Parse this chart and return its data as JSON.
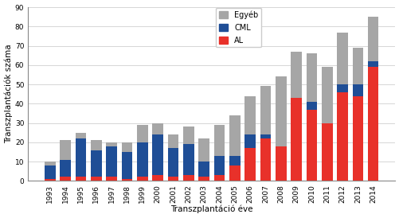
{
  "years": [
    "1993",
    "1994",
    "1995",
    "1996",
    "1997",
    "1998",
    "1999",
    "2000",
    "2001",
    "2002",
    "2003",
    "2004",
    "2005",
    "2006",
    "2007",
    "2008",
    "2009",
    "2010",
    "2011",
    "2012",
    "2013",
    "2014"
  ],
  "AL": [
    1,
    2,
    2,
    2,
    2,
    1,
    2,
    3,
    2,
    3,
    2,
    3,
    8,
    17,
    22,
    18,
    43,
    37,
    30,
    46,
    44,
    59
  ],
  "CML": [
    7,
    9,
    20,
    14,
    16,
    14,
    18,
    21,
    15,
    16,
    8,
    10,
    5,
    7,
    2,
    0,
    0,
    4,
    0,
    4,
    6,
    3
  ],
  "Egyeb": [
    2,
    10,
    3,
    5,
    2,
    5,
    9,
    6,
    7,
    9,
    12,
    16,
    21,
    20,
    25,
    36,
    24,
    25,
    29,
    27,
    19,
    23
  ],
  "color_AL": "#e8312a",
  "color_CML": "#1f4e96",
  "color_Egyeb": "#a6a6a6",
  "ylabel": "Transzplantációk száma",
  "xlabel": "Transzplantáció éve",
  "ylim": [
    0,
    90
  ],
  "yticks": [
    0,
    10,
    20,
    30,
    40,
    50,
    60,
    70,
    80,
    90
  ],
  "axis_fontsize": 7.5,
  "tick_fontsize": 6.5,
  "legend_fontsize": 7
}
